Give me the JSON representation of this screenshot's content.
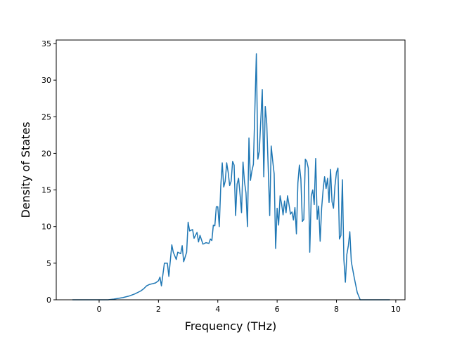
{
  "chart_data": {
    "type": "line",
    "x_label": "Frequency (THz)",
    "y_label": "Density of States",
    "xlim": [
      -1.445,
      10.31
    ],
    "ylim": [
      0,
      35.48
    ],
    "xticks": [
      0,
      2,
      4,
      6,
      8,
      10
    ],
    "yticks": [
      0,
      5,
      10,
      15,
      20,
      25,
      30,
      35
    ],
    "series": [
      {
        "color": "#1f77b4",
        "x": [
          -0.9,
          0.3,
          0.5,
          0.8,
          1.0,
          1.2,
          1.4,
          1.5,
          1.6,
          1.7,
          1.8,
          1.9,
          2.0,
          2.05,
          2.1,
          2.2,
          2.3,
          2.35,
          2.45,
          2.5,
          2.6,
          2.65,
          2.75,
          2.8,
          2.85,
          2.95,
          3.0,
          3.05,
          3.15,
          3.2,
          3.3,
          3.35,
          3.4,
          3.5,
          3.6,
          3.7,
          3.75,
          3.8,
          3.85,
          3.9,
          3.95,
          4.0,
          4.05,
          4.1,
          4.15,
          4.2,
          4.25,
          4.3,
          4.35,
          4.4,
          4.45,
          4.5,
          4.55,
          4.6,
          4.65,
          4.7,
          4.75,
          4.8,
          4.85,
          4.9,
          4.95,
          5.0,
          5.05,
          5.1,
          5.15,
          5.2,
          5.25,
          5.3,
          5.35,
          5.4,
          5.45,
          5.5,
          5.55,
          5.6,
          5.65,
          5.7,
          5.75,
          5.8,
          5.85,
          5.9,
          5.95,
          6.0,
          6.05,
          6.1,
          6.15,
          6.2,
          6.25,
          6.3,
          6.35,
          6.4,
          6.45,
          6.5,
          6.55,
          6.6,
          6.65,
          6.7,
          6.75,
          6.8,
          6.85,
          6.9,
          6.95,
          7.0,
          7.05,
          7.1,
          7.15,
          7.2,
          7.25,
          7.3,
          7.35,
          7.4,
          7.45,
          7.5,
          7.55,
          7.6,
          7.65,
          7.7,
          7.75,
          7.8,
          7.85,
          7.9,
          7.95,
          8.0,
          8.05,
          8.1,
          8.15,
          8.2,
          8.25,
          8.3,
          8.35,
          8.4,
          8.45,
          8.5,
          8.6,
          8.7,
          8.8,
          9.8
        ],
        "values": [
          0,
          0,
          0.1,
          0.3,
          0.5,
          0.8,
          1.2,
          1.5,
          1.9,
          2.1,
          2.2,
          2.3,
          2.6,
          3.1,
          1.9,
          5.0,
          5.0,
          3.2,
          7.5,
          6.5,
          5.5,
          6.5,
          6.3,
          7.4,
          5.2,
          6.5,
          10.6,
          9.4,
          9.6,
          8.4,
          9.2,
          7.9,
          8.8,
          7.6,
          7.8,
          7.7,
          8.3,
          8.1,
          10.2,
          10.1,
          12.7,
          12.7,
          10.0,
          15.5,
          18.7,
          15.4,
          16.2,
          18.7,
          17.4,
          15.6,
          16.2,
          18.9,
          18.4,
          11.5,
          15.8,
          16.6,
          14.4,
          11.9,
          18.8,
          16.1,
          14.6,
          10.0,
          22.1,
          16.3,
          17.6,
          18.5,
          26.0,
          33.6,
          19.2,
          20.3,
          24.6,
          28.7,
          16.8,
          26.4,
          24.1,
          18.0,
          11.5,
          21.0,
          19.0,
          17.2,
          7.0,
          12.5,
          10.2,
          14.2,
          13.1,
          11.6,
          13.5,
          11.9,
          14.2,
          13.0,
          11.7,
          12.0,
          10.9,
          12.6,
          9.0,
          16.0,
          18.4,
          16.5,
          10.7,
          11.0,
          19.2,
          18.9,
          18.0,
          6.5,
          14.2,
          15.0,
          13.0,
          19.3,
          11.0,
          12.8,
          8.0,
          12.5,
          15.0,
          16.8,
          15.2,
          16.6,
          13.3,
          17.8,
          13.4,
          12.5,
          15.6,
          17.4,
          18.0,
          8.3,
          8.8,
          16.4,
          5.5,
          2.4,
          6.2,
          7.4,
          9.3,
          5.2,
          3.0,
          1.0,
          0,
          0
        ]
      }
    ]
  }
}
